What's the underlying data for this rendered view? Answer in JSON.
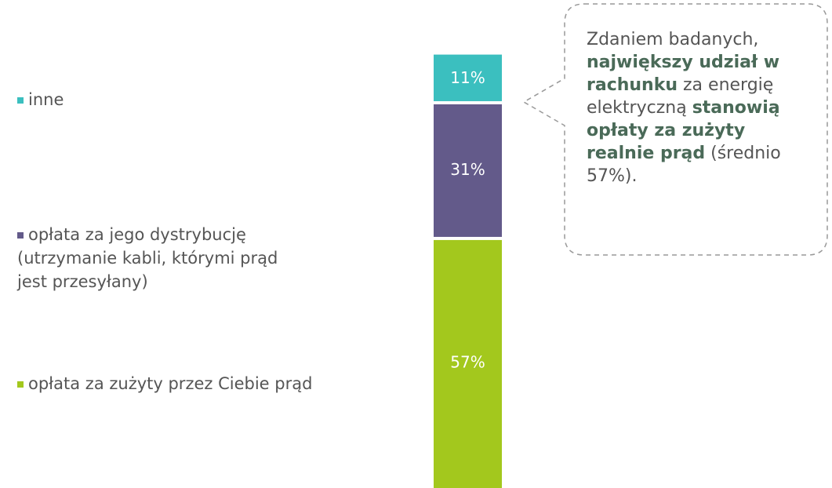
{
  "chart_data": {
    "type": "stacked-bar",
    "series": [
      {
        "name": "opłata za zużyty przez Ciebie prąd",
        "color": "#a3c81d",
        "values": [
          57
        ],
        "value_labels": [
          "57%"
        ]
      },
      {
        "name": "opłata za jego dystrybucję (utrzymanie kabli, którymi prąd jest przesyłany)",
        "color": "#635a8a",
        "values": [
          31
        ],
        "value_labels": [
          "31%"
        ]
      },
      {
        "name": "inne",
        "color": "#3bbfbf",
        "values": [
          11
        ],
        "value_labels": [
          "11%"
        ]
      }
    ],
    "annotation": [
      {
        "text": "Zdaniem badanych, ",
        "bold": false
      },
      {
        "text": "największy udział w rachunku",
        "bold": true
      },
      {
        "text": " za energię elektryczną ",
        "bold": false
      },
      {
        "text": "stanowią opłaty za zużyty realnie prąd",
        "bold": true
      },
      {
        "text": " (średnio 57%).",
        "bold": false
      }
    ]
  }
}
